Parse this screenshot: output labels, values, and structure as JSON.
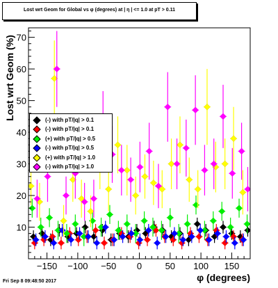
{
  "chart_data": {
    "type": "scatter",
    "title": "Lost wrt Geom for Global vs φ (degrees) at | η | <= 1.0 at pT > 0.11",
    "xlabel": "φ (degrees)",
    "ylabel": "Lost wrt Geom (%)",
    "xlim": [
      -180,
      180
    ],
    "ylim": [
      0,
      73
    ],
    "x_ticks": [
      -150,
      -100,
      -50,
      0,
      50,
      100,
      150
    ],
    "x_tick_labels": [
      "−150",
      "−100",
      "−50",
      "0",
      "50",
      "100",
      "150"
    ],
    "y_ticks": [
      10,
      20,
      30,
      40,
      50,
      60,
      70
    ],
    "y_tick_labels": [
      "10",
      "20",
      "30",
      "40",
      "50",
      "60",
      "70"
    ],
    "grid": false,
    "legend_position": "middle-left",
    "series": [
      {
        "name": "(-) with pT/|q| > 0.1",
        "color": "#000000",
        "x": [
          -172,
          -158,
          -144,
          -130,
          -116,
          -102,
          -88,
          -74,
          -60,
          -46,
          -32,
          -18,
          -4,
          10,
          24,
          38,
          52,
          66,
          80,
          94,
          108,
          122,
          136,
          150,
          164,
          176
        ],
        "y": [
          7,
          8,
          6,
          9,
          7,
          8,
          10,
          7,
          9,
          6,
          8,
          7,
          9,
          8,
          10,
          9,
          7,
          8,
          6,
          11,
          9,
          7,
          10,
          8,
          7,
          9
        ],
        "err": [
          2,
          2,
          2,
          2,
          2,
          2,
          2,
          2,
          2,
          2,
          2,
          2,
          2,
          2,
          2,
          2,
          2,
          2,
          2,
          2,
          2,
          2,
          2,
          2,
          2,
          2
        ]
      },
      {
        "name": "(-) with pT/|q| > 0.1",
        "color": "#ff0000",
        "x": [
          -170,
          -155,
          -141,
          -127,
          -113,
          -99,
          -85,
          -71,
          -57,
          -43,
          -29,
          -15,
          -1,
          13,
          27,
          41,
          55,
          69,
          83,
          97,
          111,
          125,
          139,
          153,
          167
        ],
        "y": [
          5,
          6,
          7,
          5,
          8,
          6,
          7,
          9,
          5,
          6,
          8,
          7,
          5,
          6,
          9,
          7,
          6,
          5,
          8,
          7,
          6,
          9,
          5,
          7,
          6
        ],
        "err": [
          2,
          2,
          2,
          2,
          2,
          2,
          2,
          2,
          2,
          2,
          2,
          2,
          2,
          2,
          2,
          2,
          2,
          2,
          2,
          2,
          2,
          2,
          2,
          2,
          2
        ]
      },
      {
        "name": "(+) with pT/|q| > 0.5",
        "color": "#00ee00",
        "x": [
          -174,
          -160,
          -146,
          -132,
          -118,
          -104,
          -90,
          -76,
          -62,
          -48,
          -34,
          -20,
          -6,
          8,
          22,
          36,
          50,
          64,
          78,
          92,
          106,
          120,
          134,
          148,
          162,
          175
        ],
        "y": [
          16,
          10,
          13,
          9,
          8,
          11,
          7,
          12,
          10,
          14,
          9,
          11,
          8,
          12,
          10,
          9,
          13,
          8,
          11,
          17,
          9,
          12,
          15,
          10,
          16,
          11
        ],
        "err": [
          3,
          3,
          3,
          3,
          3,
          3,
          3,
          3,
          3,
          3,
          3,
          3,
          3,
          3,
          3,
          3,
          3,
          3,
          3,
          3,
          3,
          3,
          3,
          3,
          3,
          3
        ]
      },
      {
        "name": "(-) with pT/|q| > 0.5",
        "color": "#0000ff",
        "x": [
          -168,
          -153,
          -139,
          -125,
          -111,
          -97,
          -83,
          -69,
          -55,
          -41,
          -27,
          -13,
          1,
          15,
          29,
          43,
          57,
          71,
          85,
          99,
          113,
          127,
          141,
          155,
          169
        ],
        "y": [
          6,
          7,
          5,
          9,
          6,
          8,
          7,
          5,
          10,
          6,
          7,
          8,
          6,
          9,
          5,
          7,
          8,
          6,
          7,
          9,
          6,
          8,
          7,
          5,
          6
        ],
        "err": [
          2,
          2,
          2,
          2,
          2,
          2,
          2,
          2,
          2,
          2,
          2,
          2,
          2,
          2,
          2,
          2,
          2,
          2,
          2,
          2,
          2,
          2,
          2,
          2,
          2
        ]
      },
      {
        "name": "(+) with pT/|q| > 1.0",
        "color": "#ffff00",
        "x": [
          -176,
          -162,
          -138,
          -123,
          -108,
          -94,
          -79,
          -64,
          -50,
          -35,
          -20,
          -6,
          9,
          23,
          37,
          52,
          66,
          81,
          95,
          110,
          124,
          139,
          153,
          168
        ],
        "y": [
          23,
          18,
          57,
          12,
          25,
          19,
          15,
          30,
          22,
          36,
          28,
          20,
          26,
          24,
          22,
          30,
          36,
          25,
          22,
          48,
          29,
          30,
          38,
          21
        ],
        "err": [
          6,
          6,
          12,
          5,
          7,
          6,
          5,
          8,
          7,
          9,
          8,
          6,
          7,
          7,
          6,
          8,
          9,
          7,
          6,
          12,
          8,
          8,
          10,
          7
        ]
      },
      {
        "name": "(-) with pT/|q| > 1.0",
        "color": "#ff00ff",
        "x": [
          -166,
          -149,
          -134,
          -119,
          -104,
          -89,
          -74,
          -59,
          -44,
          -29,
          -14,
          1,
          16,
          31,
          46,
          61,
          76,
          91,
          106,
          121,
          136,
          151,
          166,
          176
        ],
        "y": [
          19,
          26,
          60,
          20,
          27,
          18,
          19,
          43,
          33,
          28,
          25,
          29,
          34,
          23,
          48,
          30,
          35,
          47,
          28,
          30,
          45,
          27,
          34,
          22
        ],
        "err": [
          6,
          8,
          12,
          6,
          8,
          6,
          6,
          10,
          9,
          8,
          7,
          8,
          9,
          7,
          11,
          8,
          9,
          11,
          8,
          8,
          10,
          8,
          9,
          7
        ]
      }
    ]
  },
  "footer": "Fri Sep  8 09:48:50 2017"
}
